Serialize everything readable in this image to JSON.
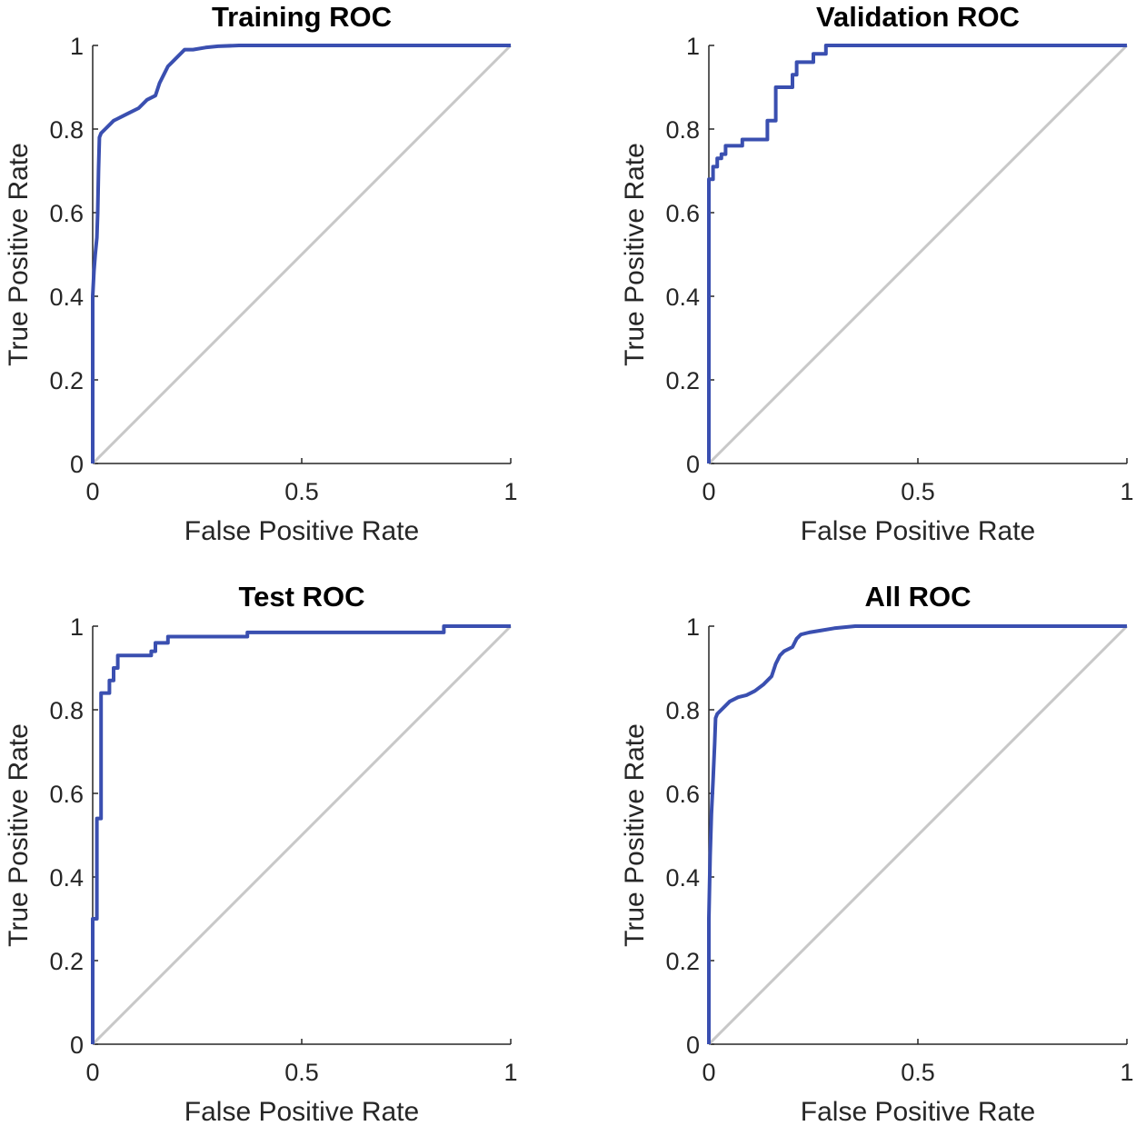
{
  "chart_data": [
    {
      "type": "line",
      "title": "Training ROC",
      "xlabel": "False Positive Rate",
      "ylabel": "True Positive Rate",
      "xlim": [
        0,
        1
      ],
      "ylim": [
        0,
        1
      ],
      "xticks": [
        "0",
        "0.5",
        "1"
      ],
      "yticks": [
        "0",
        "0.2",
        "0.4",
        "0.6",
        "0.8",
        "1"
      ],
      "series": [
        {
          "name": "Diagonal",
          "color": "#c8c8c8",
          "x": [
            0,
            1
          ],
          "y": [
            0,
            1
          ]
        },
        {
          "name": "ROC",
          "color": "#3a4fb0",
          "x": [
            0,
            0,
            0.003,
            0.006,
            0.01,
            0.012,
            0.014,
            0.016,
            0.02,
            0.03,
            0.04,
            0.05,
            0.07,
            0.09,
            0.11,
            0.13,
            0.15,
            0.16,
            0.17,
            0.18,
            0.19,
            0.2,
            0.21,
            0.22,
            0.24,
            0.27,
            0.3,
            0.35,
            1
          ],
          "y": [
            0,
            0.4,
            0.46,
            0.5,
            0.54,
            0.6,
            0.7,
            0.78,
            0.79,
            0.8,
            0.81,
            0.82,
            0.83,
            0.84,
            0.85,
            0.87,
            0.88,
            0.91,
            0.93,
            0.95,
            0.96,
            0.97,
            0.98,
            0.99,
            0.99,
            0.995,
            0.998,
            1,
            1
          ]
        }
      ]
    },
    {
      "type": "line",
      "title": "Validation ROC",
      "xlabel": "False Positive Rate",
      "ylabel": "True Positive Rate",
      "xlim": [
        0,
        1
      ],
      "ylim": [
        0,
        1
      ],
      "xticks": [
        "0",
        "0.5",
        "1"
      ],
      "yticks": [
        "0",
        "0.2",
        "0.4",
        "0.6",
        "0.8",
        "1"
      ],
      "series": [
        {
          "name": "Diagonal",
          "color": "#c8c8c8",
          "x": [
            0,
            1
          ],
          "y": [
            0,
            1
          ]
        },
        {
          "name": "ROC",
          "color": "#3a4fb0",
          "x": [
            0,
            0,
            0.01,
            0.01,
            0.02,
            0.02,
            0.03,
            0.03,
            0.04,
            0.04,
            0.08,
            0.08,
            0.14,
            0.14,
            0.16,
            0.16,
            0.2,
            0.2,
            0.21,
            0.21,
            0.25,
            0.25,
            0.28,
            0.28,
            1
          ],
          "y": [
            0,
            0.68,
            0.68,
            0.71,
            0.71,
            0.73,
            0.73,
            0.74,
            0.74,
            0.76,
            0.76,
            0.775,
            0.775,
            0.82,
            0.82,
            0.9,
            0.9,
            0.93,
            0.93,
            0.96,
            0.96,
            0.98,
            0.98,
            1,
            1
          ]
        }
      ]
    },
    {
      "type": "line",
      "title": "Test ROC",
      "xlabel": "False Positive Rate",
      "ylabel": "True Positive Rate",
      "xlim": [
        0,
        1
      ],
      "ylim": [
        0,
        1
      ],
      "xticks": [
        "0",
        "0.5",
        "1"
      ],
      "yticks": [
        "0",
        "0.2",
        "0.4",
        "0.6",
        "0.8",
        "1"
      ],
      "series": [
        {
          "name": "Diagonal",
          "color": "#c8c8c8",
          "x": [
            0,
            1
          ],
          "y": [
            0,
            1
          ]
        },
        {
          "name": "ROC",
          "color": "#3a4fb0",
          "x": [
            0,
            0,
            0.01,
            0.01,
            0.02,
            0.02,
            0.04,
            0.04,
            0.05,
            0.05,
            0.06,
            0.06,
            0.14,
            0.14,
            0.15,
            0.15,
            0.18,
            0.18,
            0.37,
            0.37,
            0.84,
            0.84,
            1
          ],
          "y": [
            0,
            0.3,
            0.3,
            0.54,
            0.54,
            0.84,
            0.84,
            0.87,
            0.87,
            0.9,
            0.9,
            0.93,
            0.93,
            0.94,
            0.94,
            0.96,
            0.96,
            0.975,
            0.975,
            0.985,
            0.985,
            1,
            1
          ]
        }
      ]
    },
    {
      "type": "line",
      "title": "All ROC",
      "xlabel": "False Positive Rate",
      "ylabel": "True Positive Rate",
      "xlim": [
        0,
        1
      ],
      "ylim": [
        0,
        1
      ],
      "xticks": [
        "0",
        "0.5",
        "1"
      ],
      "yticks": [
        "0",
        "0.2",
        "0.4",
        "0.6",
        "0.8",
        "1"
      ],
      "series": [
        {
          "name": "Diagonal",
          "color": "#c8c8c8",
          "x": [
            0,
            1
          ],
          "y": [
            0,
            1
          ]
        },
        {
          "name": "ROC",
          "color": "#3a4fb0",
          "x": [
            0,
            0,
            0.003,
            0.006,
            0.01,
            0.014,
            0.016,
            0.02,
            0.03,
            0.04,
            0.05,
            0.07,
            0.09,
            0.11,
            0.13,
            0.15,
            0.16,
            0.17,
            0.18,
            0.2,
            0.21,
            0.22,
            0.24,
            0.27,
            0.3,
            0.35,
            0.8,
            1
          ],
          "y": [
            0,
            0.3,
            0.45,
            0.55,
            0.63,
            0.72,
            0.78,
            0.79,
            0.8,
            0.81,
            0.82,
            0.83,
            0.835,
            0.845,
            0.86,
            0.88,
            0.91,
            0.93,
            0.94,
            0.95,
            0.97,
            0.98,
            0.985,
            0.99,
            0.995,
            1,
            1,
            1
          ]
        }
      ]
    }
  ]
}
